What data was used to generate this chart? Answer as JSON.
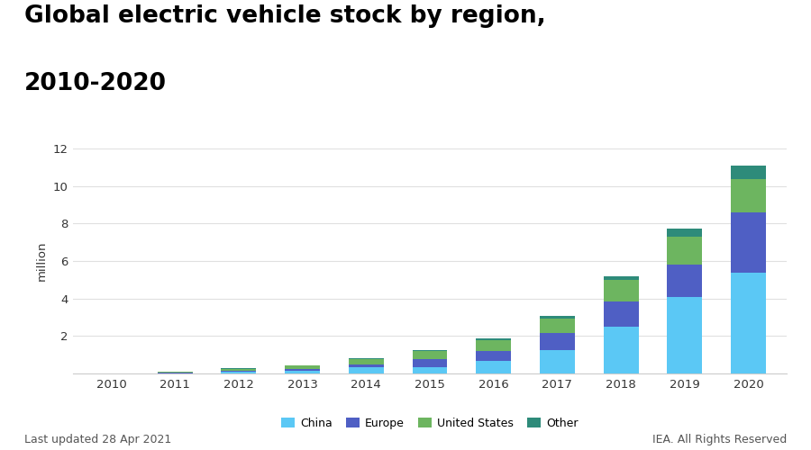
{
  "years": [
    2010,
    2011,
    2012,
    2013,
    2014,
    2015,
    2016,
    2017,
    2018,
    2019,
    2020
  ],
  "china": [
    0.001,
    0.008,
    0.09,
    0.15,
    0.32,
    0.33,
    0.65,
    1.23,
    2.51,
    4.1,
    5.4
  ],
  "europe": [
    0.01,
    0.03,
    0.065,
    0.11,
    0.155,
    0.44,
    0.55,
    0.95,
    1.35,
    1.7,
    3.2
  ],
  "united_states": [
    0.005,
    0.045,
    0.095,
    0.175,
    0.295,
    0.41,
    0.57,
    0.76,
    1.13,
    1.5,
    1.77
  ],
  "other": [
    0.001,
    0.005,
    0.015,
    0.02,
    0.045,
    0.06,
    0.08,
    0.12,
    0.2,
    0.45,
    0.7
  ],
  "colors": {
    "china": "#5BC8F5",
    "europe": "#4F5FC4",
    "united_states": "#6DB560",
    "other": "#2E8B7A"
  },
  "title_line1": "Global electric vehicle stock by region,",
  "title_line2": "2010-2020",
  "ylabel": "million",
  "ylim": [
    0,
    12
  ],
  "yticks": [
    0,
    2,
    4,
    6,
    8,
    10,
    12
  ],
  "background_color": "#ffffff",
  "grid_color": "#e0e0e0",
  "footer_left": "Last updated 28 Apr 2021",
  "footer_right": "IEA. All Rights Reserved",
  "legend_labels": [
    "China",
    "Europe",
    "United States",
    "Other"
  ]
}
